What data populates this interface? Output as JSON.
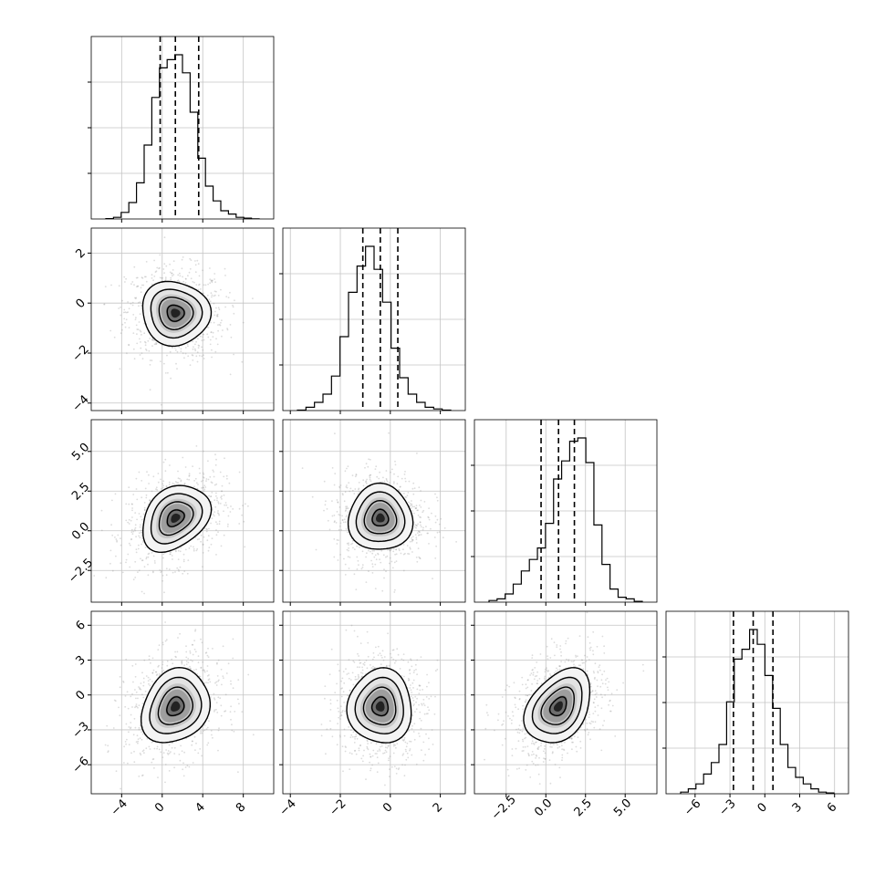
{
  "chart_data": {
    "type": "corner",
    "n_params": 4,
    "grid": true,
    "colors": {
      "hist": "#000000",
      "contour": "#000000",
      "points": "#9a9a9a",
      "grid": "#c4c4c4",
      "axes": "#000000"
    },
    "params": [
      {
        "range": [
          -7,
          11
        ],
        "ticks": [
          -4,
          0,
          4,
          8
        ],
        "tick_labels": [
          "−4",
          "0",
          "4",
          "8"
        ],
        "quantiles": [
          -0.2,
          1.3,
          3.6
        ],
        "hist_bins": [
          0.002,
          0.01,
          0.04,
          0.1,
          0.22,
          0.45,
          0.74,
          0.92,
          0.97,
          1.0,
          0.89,
          0.65,
          0.37,
          0.2,
          0.11,
          0.05,
          0.03,
          0.01,
          0.005,
          0.001
        ]
      },
      {
        "range": [
          -4.3,
          3.0
        ],
        "ticks": [
          -4,
          -2,
          0,
          2
        ],
        "tick_labels": [
          "−4",
          "−2",
          "0",
          "2"
        ],
        "quantiles": [
          -1.1,
          -0.4,
          0.3
        ],
        "hist_bins": [
          0.003,
          0.02,
          0.05,
          0.1,
          0.21,
          0.45,
          0.72,
          0.88,
          1.0,
          0.86,
          0.66,
          0.38,
          0.2,
          0.1,
          0.05,
          0.02,
          0.01,
          0.003
        ]
      },
      {
        "range": [
          -4.5,
          7.0
        ],
        "ticks": [
          -2.5,
          0.0,
          2.5,
          5.0
        ],
        "tick_labels": [
          "−2.5",
          "0.0",
          "2.5",
          "5.0"
        ],
        "quantiles": [
          -0.3,
          0.8,
          1.8
        ],
        "hist_bins": [
          0.01,
          0.02,
          0.05,
          0.11,
          0.19,
          0.26,
          0.33,
          0.48,
          0.75,
          0.86,
          0.98,
          1.0,
          0.85,
          0.47,
          0.23,
          0.08,
          0.03,
          0.02,
          0.005
        ]
      },
      {
        "range": [
          -8.5,
          7.2
        ],
        "ticks": [
          -6,
          -3,
          0,
          3,
          6
        ],
        "tick_labels": [
          "−6",
          "−3",
          "0",
          "3",
          "6"
        ],
        "quantiles": [
          -2.7,
          -1.0,
          0.7
        ],
        "hist_bins": [
          0.01,
          0.03,
          0.06,
          0.12,
          0.19,
          0.3,
          0.56,
          0.82,
          0.88,
          1.0,
          0.91,
          0.72,
          0.52,
          0.3,
          0.16,
          0.1,
          0.06,
          0.03,
          0.01,
          0.005
        ]
      }
    ],
    "y_ticks": {
      "1": {
        "ticks": [
          -4,
          -2,
          0,
          2
        ],
        "tick_labels": [
          "−4",
          "−2",
          "0",
          "2"
        ]
      },
      "2": {
        "ticks": [
          -2.5,
          0.0,
          2.5,
          5.0
        ],
        "tick_labels": [
          "−2.5",
          "0.0",
          "2.5",
          "5.0"
        ]
      },
      "3": {
        "ticks": [
          -6,
          -3,
          0,
          3,
          6
        ],
        "tick_labels": [
          "−6",
          "−3",
          "0",
          "3",
          "6"
        ]
      }
    },
    "hist_y_ticks": [
      0.25,
      0.5,
      0.75
    ],
    "pairs": [
      {
        "row": 1,
        "col": 0,
        "mean": [
          1.3,
          -0.4
        ],
        "std": [
          2.1,
          0.8
        ],
        "corr": -0.05
      },
      {
        "row": 2,
        "col": 0,
        "mean": [
          1.3,
          0.8
        ],
        "std": [
          2.1,
          1.3
        ],
        "corr": 0.3
      },
      {
        "row": 2,
        "col": 1,
        "mean": [
          -0.4,
          0.8
        ],
        "std": [
          0.8,
          1.3
        ],
        "corr": 0.0
      },
      {
        "row": 3,
        "col": 0,
        "mean": [
          1.3,
          -1.0
        ],
        "std": [
          2.1,
          2.0
        ],
        "corr": 0.2
      },
      {
        "row": 3,
        "col": 1,
        "mean": [
          -0.4,
          -1.0
        ],
        "std": [
          0.8,
          2.0
        ],
        "corr": 0.0
      },
      {
        "row": 3,
        "col": 2,
        "mean": [
          0.8,
          -1.0
        ],
        "std": [
          1.3,
          2.0
        ],
        "corr": 0.35
      }
    ],
    "contour_sigma_levels": [
      0.5,
      1.0,
      1.5,
      2.0
    ]
  }
}
